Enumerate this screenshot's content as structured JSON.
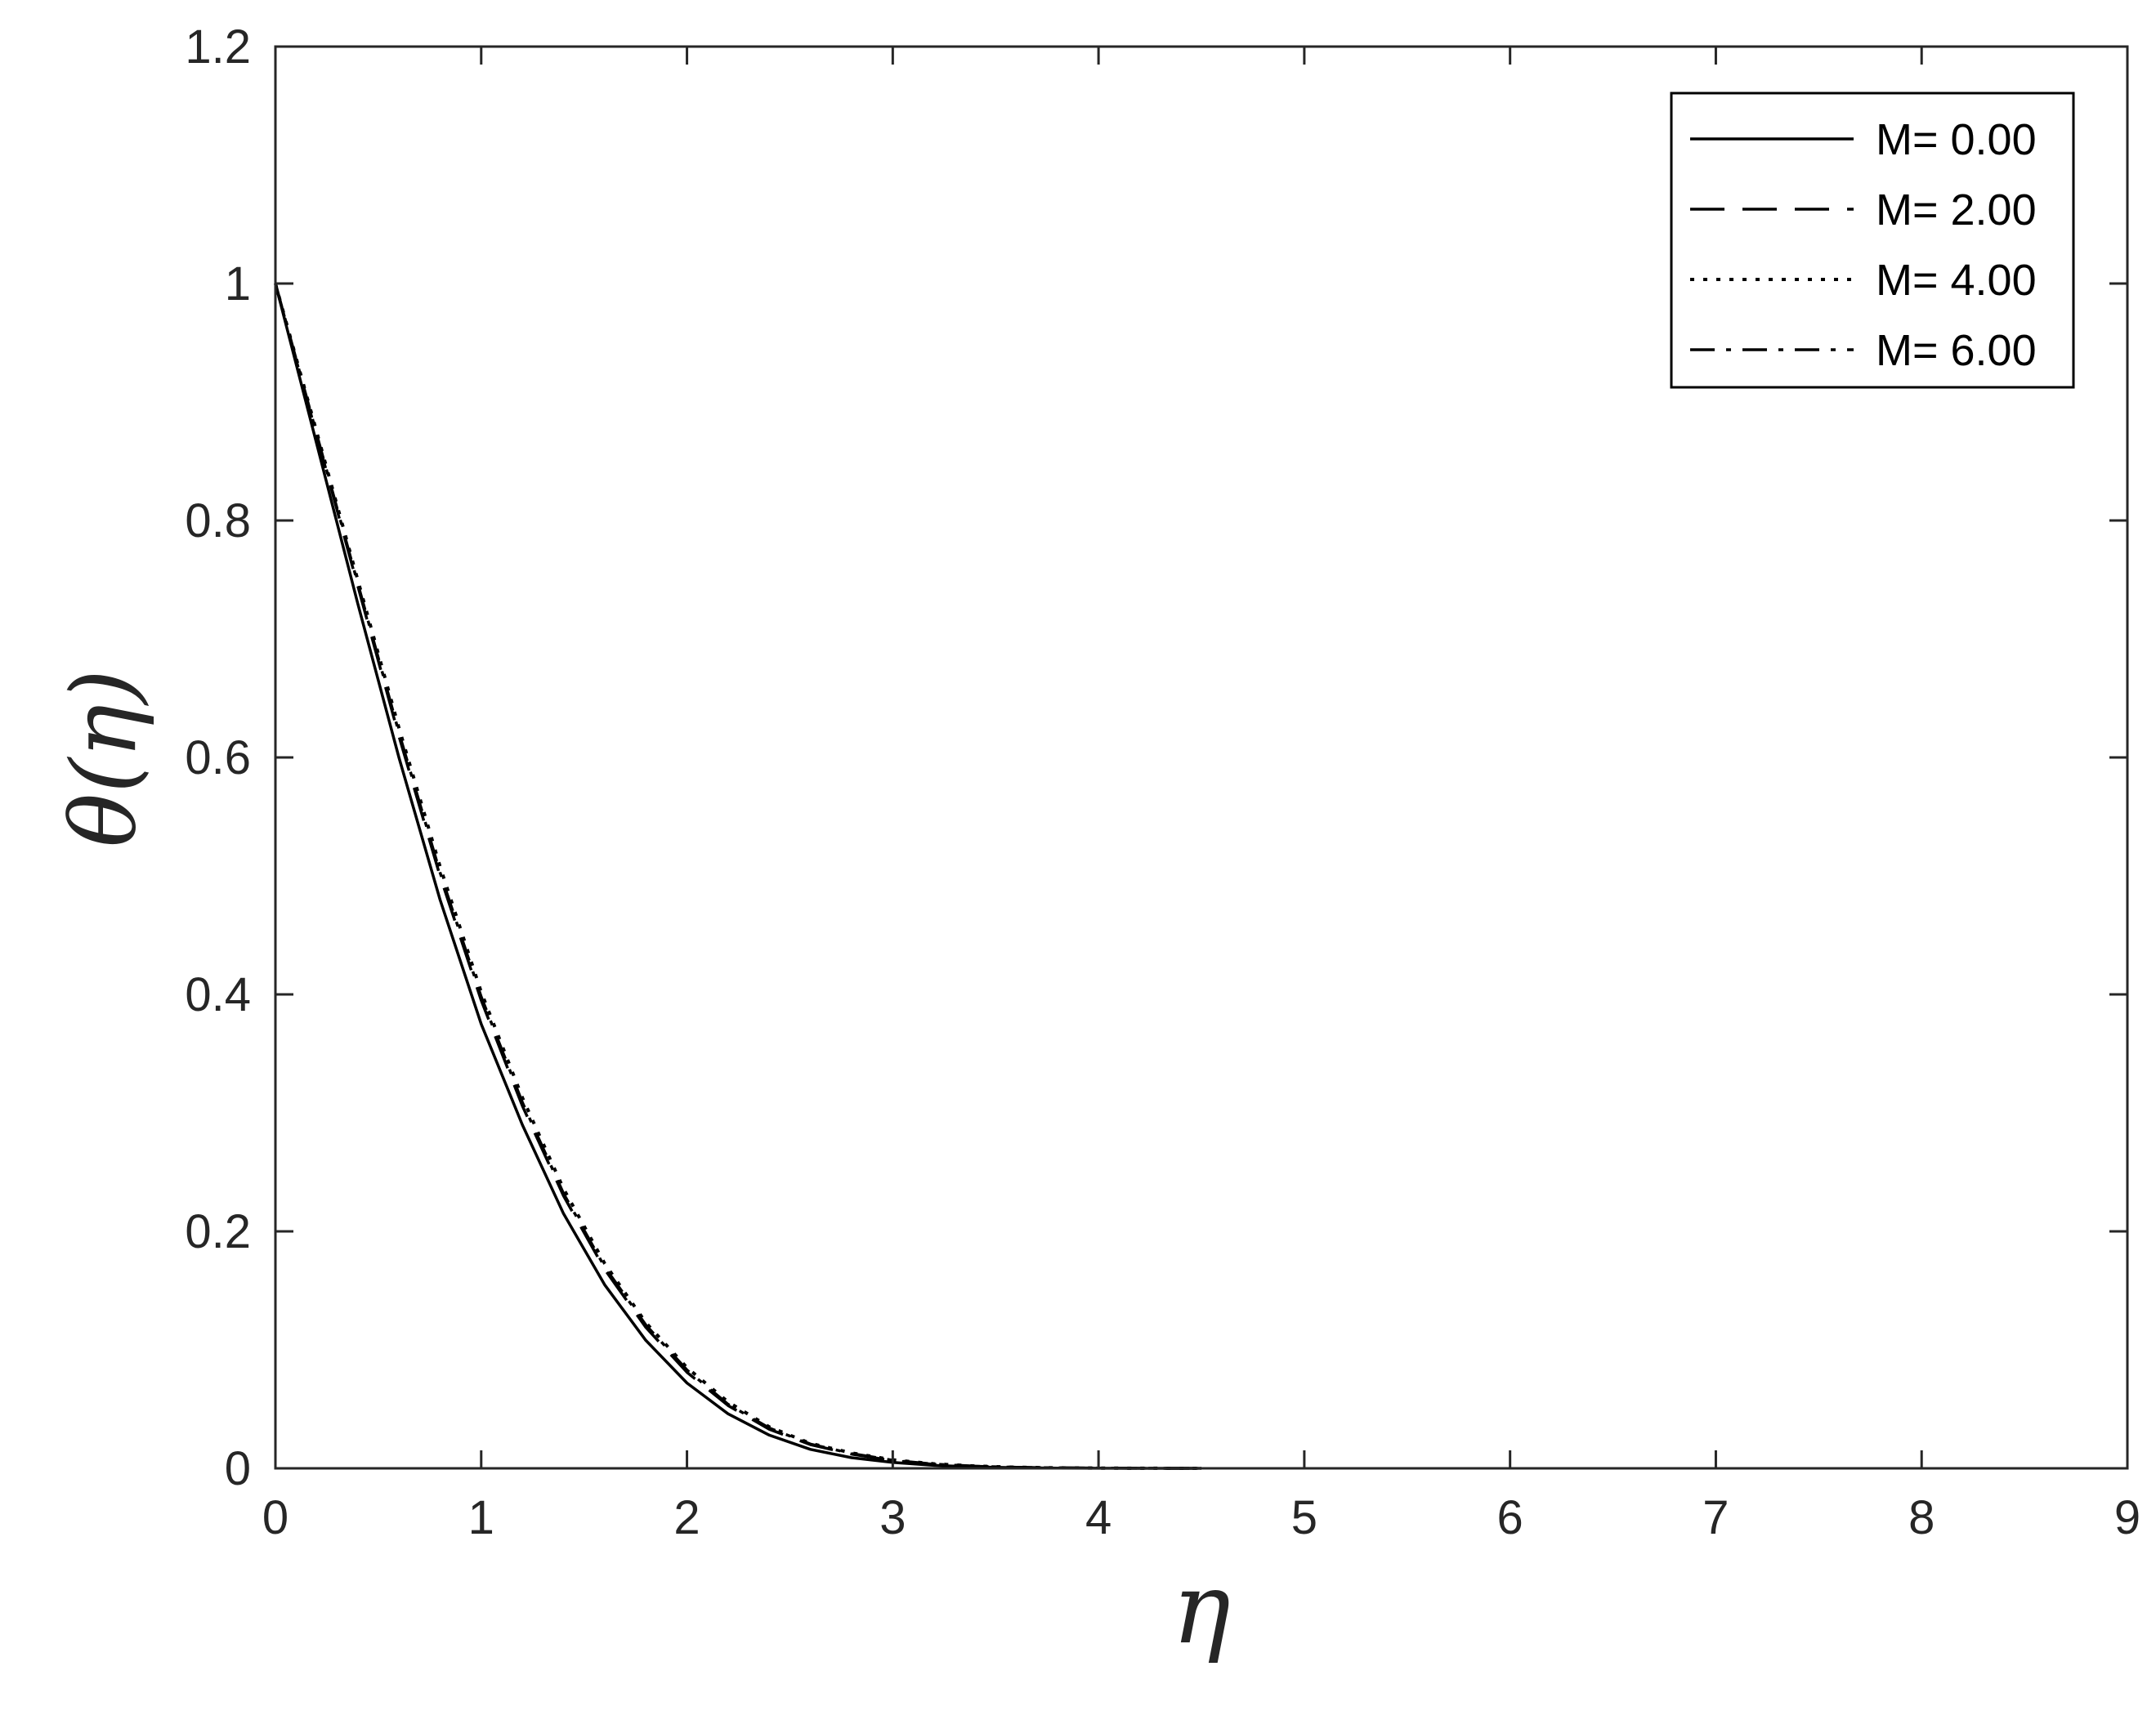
{
  "chart_data": {
    "type": "line",
    "xlabel": "η",
    "ylabel": "θ(η)",
    "xlim": [
      0,
      9
    ],
    "ylim": [
      0,
      1.2
    ],
    "xticks": [
      0,
      1,
      2,
      3,
      4,
      5,
      6,
      7,
      8,
      9
    ],
    "yticks": [
      0,
      0.2,
      0.4,
      0.6,
      0.8,
      1,
      1.2
    ],
    "xtick_labels": [
      "0",
      "1",
      "2",
      "3",
      "4",
      "5",
      "6",
      "7",
      "8",
      "9"
    ],
    "ytick_labels": [
      "0",
      "0.2",
      "0.4",
      "0.6",
      "0.8",
      "1",
      "1.2"
    ],
    "grid": false,
    "legend_position": "top-right",
    "x": [
      0,
      0.2,
      0.4,
      0.6,
      0.8,
      1.0,
      1.2,
      1.4,
      1.6,
      1.8,
      2.0,
      2.2,
      2.4,
      2.6,
      2.8,
      3.0,
      3.2,
      3.4,
      3.6,
      3.8,
      4.0,
      4.2,
      4.5
    ],
    "series": [
      {
        "name": "M= 0.00",
        "style": "solid",
        "values": [
          1.0,
          0.865,
          0.73,
          0.6,
          0.48,
          0.375,
          0.29,
          0.215,
          0.155,
          0.108,
          0.072,
          0.046,
          0.028,
          0.016,
          0.009,
          0.005,
          0.0025,
          0.0012,
          0.0005,
          0.0002,
          0.0001,
          0.0,
          0.0
        ]
      },
      {
        "name": "M= 2.00",
        "style": "dashed",
        "values": [
          1.0,
          0.872,
          0.745,
          0.618,
          0.5,
          0.395,
          0.306,
          0.23,
          0.168,
          0.119,
          0.081,
          0.053,
          0.033,
          0.02,
          0.012,
          0.0065,
          0.0034,
          0.0017,
          0.0008,
          0.0004,
          0.0002,
          0.0001,
          0.0
        ]
      },
      {
        "name": "M= 4.00",
        "style": "dotted",
        "values": [
          1.0,
          0.875,
          0.75,
          0.625,
          0.508,
          0.402,
          0.313,
          0.236,
          0.173,
          0.123,
          0.085,
          0.056,
          0.035,
          0.021,
          0.013,
          0.0072,
          0.0038,
          0.0019,
          0.0009,
          0.0004,
          0.0002,
          0.0001,
          0.0
        ]
      },
      {
        "name": "M= 6.00",
        "style": "dashdot",
        "values": [
          1.0,
          0.873,
          0.747,
          0.621,
          0.503,
          0.398,
          0.309,
          0.232,
          0.17,
          0.121,
          0.083,
          0.054,
          0.034,
          0.0205,
          0.0125,
          0.0068,
          0.0036,
          0.0018,
          0.0008,
          0.0004,
          0.0002,
          0.0001,
          0.0
        ]
      }
    ]
  }
}
